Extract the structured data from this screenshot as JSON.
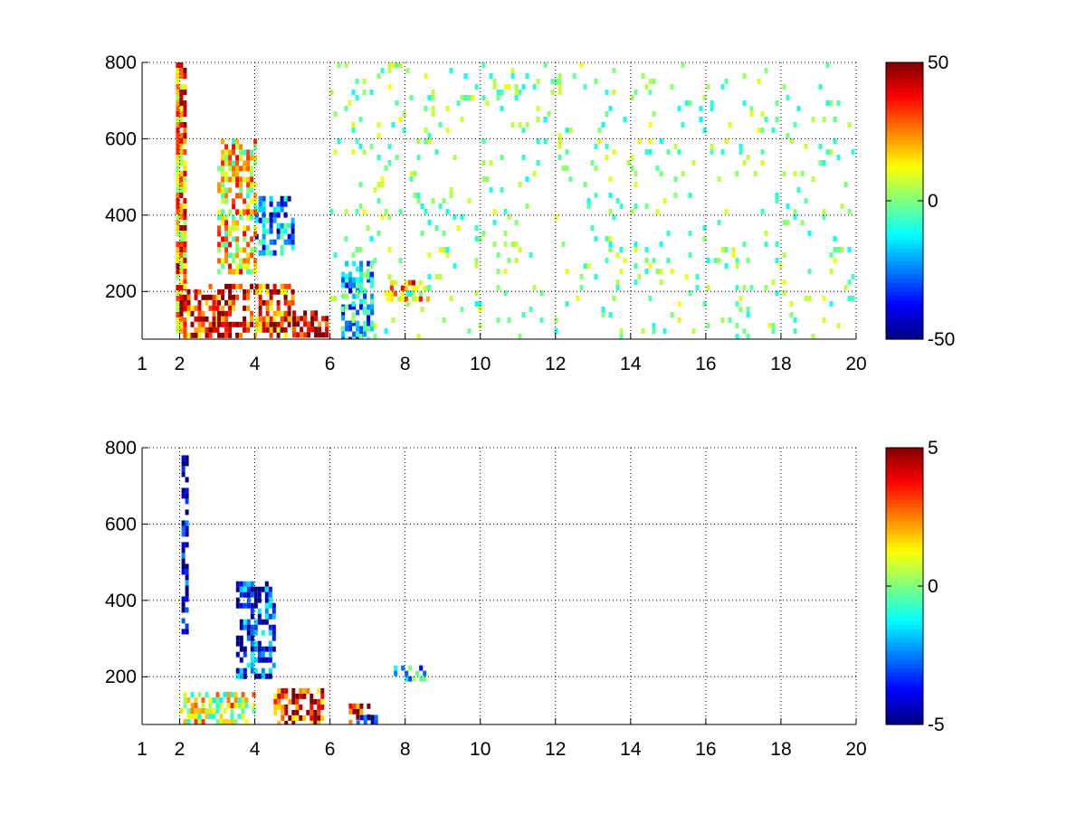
{
  "chart_data": [
    {
      "type": "heatmap",
      "title": "",
      "xlabel": "",
      "ylabel": "",
      "xlim": [
        1,
        20
      ],
      "ylim": [
        75,
        800
      ],
      "x_ticks": [
        1,
        2,
        4,
        6,
        8,
        10,
        12,
        14,
        16,
        18,
        20
      ],
      "x_tick_labels": [
        "1",
        "2",
        "4",
        "6",
        "8",
        "10",
        "12",
        "14",
        "16",
        "18",
        "20"
      ],
      "y_ticks": [
        200,
        400,
        600,
        800
      ],
      "y_tick_labels": [
        "200",
        "400",
        "600",
        "800"
      ],
      "grid": true,
      "colormap": "jet",
      "colorbar": {
        "min": -50,
        "max": 50,
        "ticks": [
          50,
          0,
          -50
        ],
        "tick_labels": [
          "50",
          "0",
          "-50"
        ]
      },
      "summary_regions": [
        {
          "x": [
            1.9,
            2.1
          ],
          "y": [
            75,
            800
          ],
          "value": 25,
          "note": "strip"
        },
        {
          "x": [
            2.0,
            3.0
          ],
          "y": [
            80,
            220
          ],
          "value": 35
        },
        {
          "x": [
            3.0,
            4.0
          ],
          "y": [
            80,
            220
          ],
          "value": 40
        },
        {
          "x": [
            4.0,
            5.0
          ],
          "y": [
            80,
            220
          ],
          "value": 30
        },
        {
          "x": [
            5.0,
            5.9
          ],
          "y": [
            80,
            150
          ],
          "value": 45
        },
        {
          "x": [
            4.0,
            5.0
          ],
          "y": [
            300,
            450
          ],
          "value": -25
        },
        {
          "x": [
            3.0,
            4.0
          ],
          "y": [
            250,
            600
          ],
          "value": 15
        },
        {
          "x": [
            6.3,
            7.1
          ],
          "y": [
            80,
            280
          ],
          "value": -20
        },
        {
          "x": [
            7.5,
            8.6
          ],
          "y": [
            180,
            230
          ],
          "value": 20
        },
        {
          "x": [
            6.0,
            20.0
          ],
          "y": [
            75,
            800
          ],
          "value": 0,
          "note": "sparse scatter"
        }
      ]
    },
    {
      "type": "heatmap",
      "title": "",
      "xlabel": "",
      "ylabel": "",
      "xlim": [
        1,
        20
      ],
      "ylim": [
        75,
        800
      ],
      "x_ticks": [
        1,
        2,
        4,
        6,
        8,
        10,
        12,
        14,
        16,
        18,
        20
      ],
      "x_tick_labels": [
        "1",
        "2",
        "4",
        "6",
        "8",
        "10",
        "12",
        "14",
        "16",
        "18",
        "20"
      ],
      "y_ticks": [
        200,
        400,
        600,
        800
      ],
      "y_tick_labels": [
        "200",
        "400",
        "600",
        "800"
      ],
      "grid": true,
      "colormap": "jet",
      "colorbar": {
        "min": -5,
        "max": 5,
        "ticks": [
          5,
          0,
          -5
        ],
        "tick_labels": [
          "5",
          "0",
          "-5"
        ]
      },
      "summary_regions": [
        {
          "x": [
            2.05,
            2.15
          ],
          "y": [
            320,
            780
          ],
          "value": -4
        },
        {
          "x": [
            3.5,
            4.5
          ],
          "y": [
            200,
            450
          ],
          "value": -3.5
        },
        {
          "x": [
            2.0,
            4.0
          ],
          "y": [
            80,
            160
          ],
          "value": 1
        },
        {
          "x": [
            4.5,
            5.8
          ],
          "y": [
            80,
            170
          ],
          "value": 3.5
        },
        {
          "x": [
            6.5,
            7.0
          ],
          "y": [
            80,
            130
          ],
          "value": 4
        },
        {
          "x": [
            6.7,
            7.2
          ],
          "y": [
            80,
            100
          ],
          "value": -4.5
        },
        {
          "x": [
            7.7,
            8.5
          ],
          "y": [
            190,
            230
          ],
          "value": -1.5
        }
      ]
    }
  ]
}
